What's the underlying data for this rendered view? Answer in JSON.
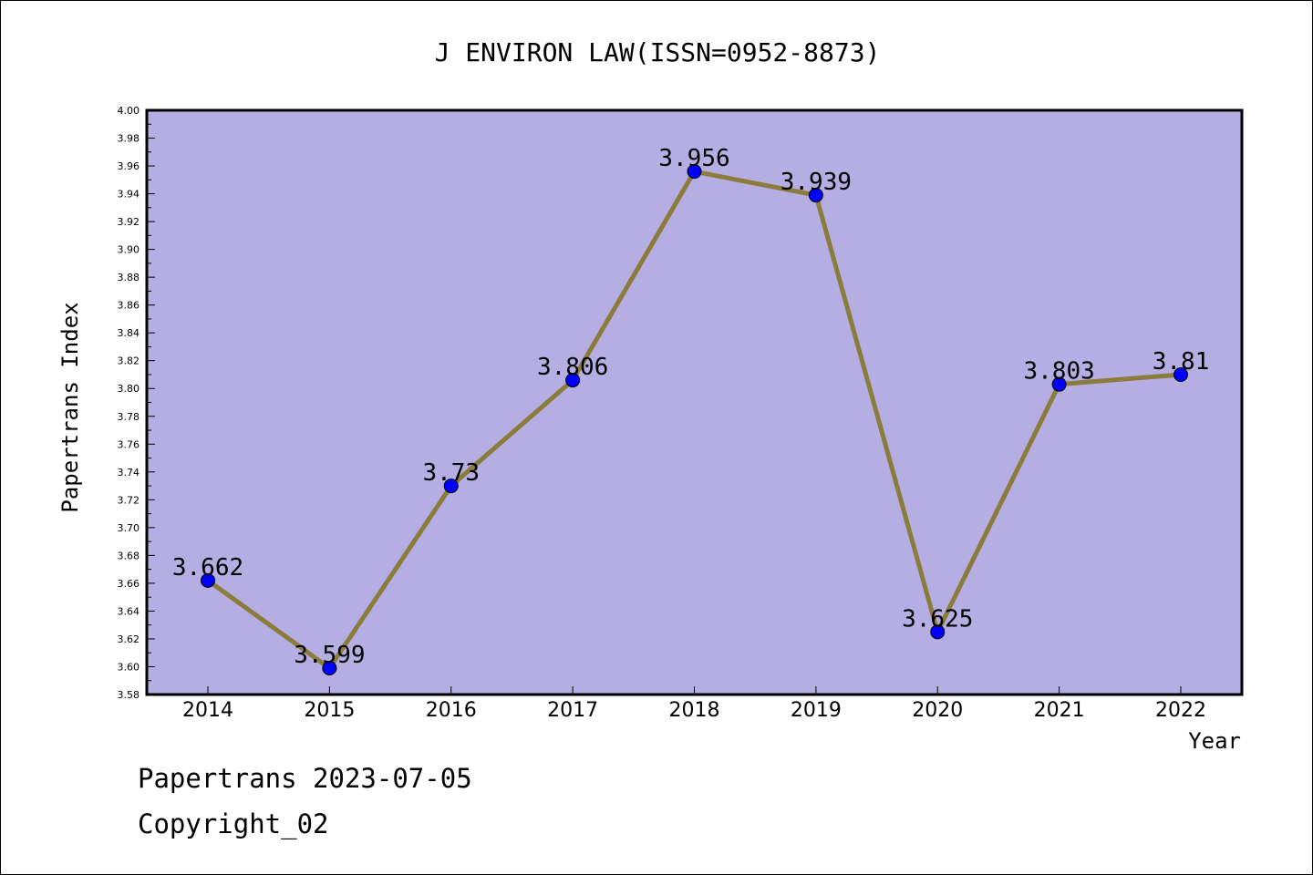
{
  "chart_data": {
    "type": "line",
    "title": "J ENVIRON LAW(ISSN=0952-8873)",
    "xlabel": "Year",
    "ylabel": "Papertrans Index",
    "x": [
      "2014",
      "2015",
      "2016",
      "2017",
      "2018",
      "2019",
      "2020",
      "2021",
      "2022"
    ],
    "series": [
      {
        "values": [
          3.662,
          3.599,
          3.73,
          3.806,
          3.956,
          3.939,
          3.625,
          3.803,
          3.81
        ],
        "labels": [
          "3.662",
          "3.599",
          "3.73",
          "3.806",
          "3.956",
          "3.939",
          "3.625",
          "3.803",
          "3.81"
        ]
      }
    ],
    "ylim": [
      3.58,
      4.0
    ],
    "yticks": [
      "3.58",
      "3.60",
      "3.62",
      "3.64",
      "3.66",
      "3.68",
      "3.70",
      "3.72",
      "3.74",
      "3.76",
      "3.78",
      "3.80",
      "3.82",
      "3.84",
      "3.86",
      "3.88",
      "3.90",
      "3.92",
      "3.94",
      "3.96",
      "3.98",
      "4.00"
    ],
    "grid": false,
    "colors": {
      "plot_bg": "#b4aee2",
      "line": "#8c7c3c",
      "marker": "#0000ff"
    }
  },
  "footer": {
    "line1": "Papertrans 2023-07-05",
    "line2": "Copyright_02"
  }
}
